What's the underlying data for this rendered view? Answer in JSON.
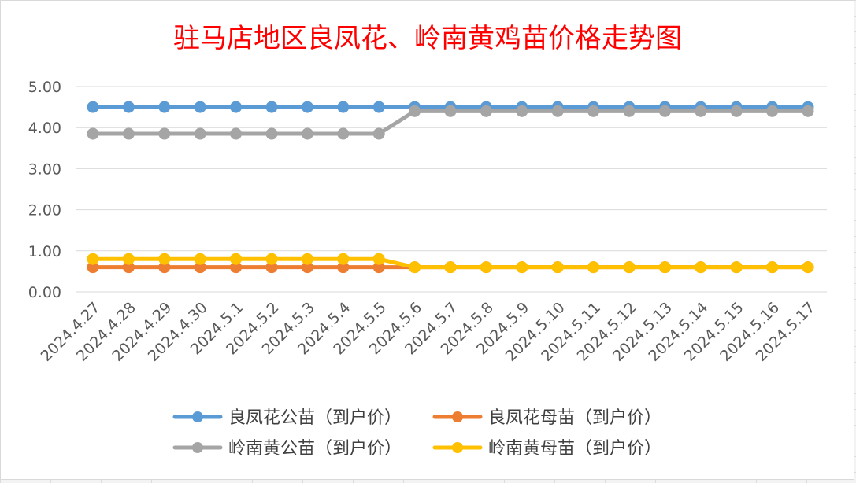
{
  "chart_data": {
    "type": "line",
    "title": "驻马店地区良凤花、岭南黄鸡苗价格走势图",
    "title_color": "#ff0000",
    "xlabel": "",
    "ylabel": "",
    "ylim": [
      0,
      5
    ],
    "yticks": [
      "0.00",
      "1.00",
      "2.00",
      "3.00",
      "4.00",
      "5.00"
    ],
    "grid": true,
    "legend_position": "bottom",
    "categories": [
      "2024.4.27",
      "2024.4.28",
      "2024.4.29",
      "2024.4.30",
      "2024.5.1",
      "2024.5.2",
      "2024.5.3",
      "2024.5.4",
      "2024.5.5",
      "2024.5.6",
      "2024.5.7",
      "2024.5.8",
      "2024.5.9",
      "2024.5.10",
      "2024.5.11",
      "2024.5.12",
      "2024.5.13",
      "2024.5.14",
      "2024.5.15",
      "2024.5.16",
      "2024.5.17"
    ],
    "series": [
      {
        "name": "良凤花公苗（到户价）",
        "color": "#5b9bd5",
        "values": [
          4.5,
          4.5,
          4.5,
          4.5,
          4.5,
          4.5,
          4.5,
          4.5,
          4.5,
          4.5,
          4.5,
          4.5,
          4.5,
          4.5,
          4.5,
          4.5,
          4.5,
          4.5,
          4.5,
          4.5,
          4.5
        ]
      },
      {
        "name": "良凤花母苗（到户价）",
        "color": "#ed7d31",
        "values": [
          0.6,
          0.6,
          0.6,
          0.6,
          0.6,
          0.6,
          0.6,
          0.6,
          0.6,
          0.6,
          0.6,
          0.6,
          0.6,
          0.6,
          0.6,
          0.6,
          0.6,
          0.6,
          0.6,
          0.6,
          0.6
        ]
      },
      {
        "name": "岭南黄公苗（到户价）",
        "color": "#a5a5a5",
        "values": [
          3.85,
          3.85,
          3.85,
          3.85,
          3.85,
          3.85,
          3.85,
          3.85,
          3.85,
          4.4,
          4.4,
          4.4,
          4.4,
          4.4,
          4.4,
          4.4,
          4.4,
          4.4,
          4.4,
          4.4,
          4.4
        ]
      },
      {
        "name": "岭南黄母苗（到户价）",
        "color": "#ffc000",
        "values": [
          0.8,
          0.8,
          0.8,
          0.8,
          0.8,
          0.8,
          0.8,
          0.8,
          0.8,
          0.6,
          0.6,
          0.6,
          0.6,
          0.6,
          0.6,
          0.6,
          0.6,
          0.6,
          0.6,
          0.6,
          0.6
        ]
      }
    ]
  }
}
